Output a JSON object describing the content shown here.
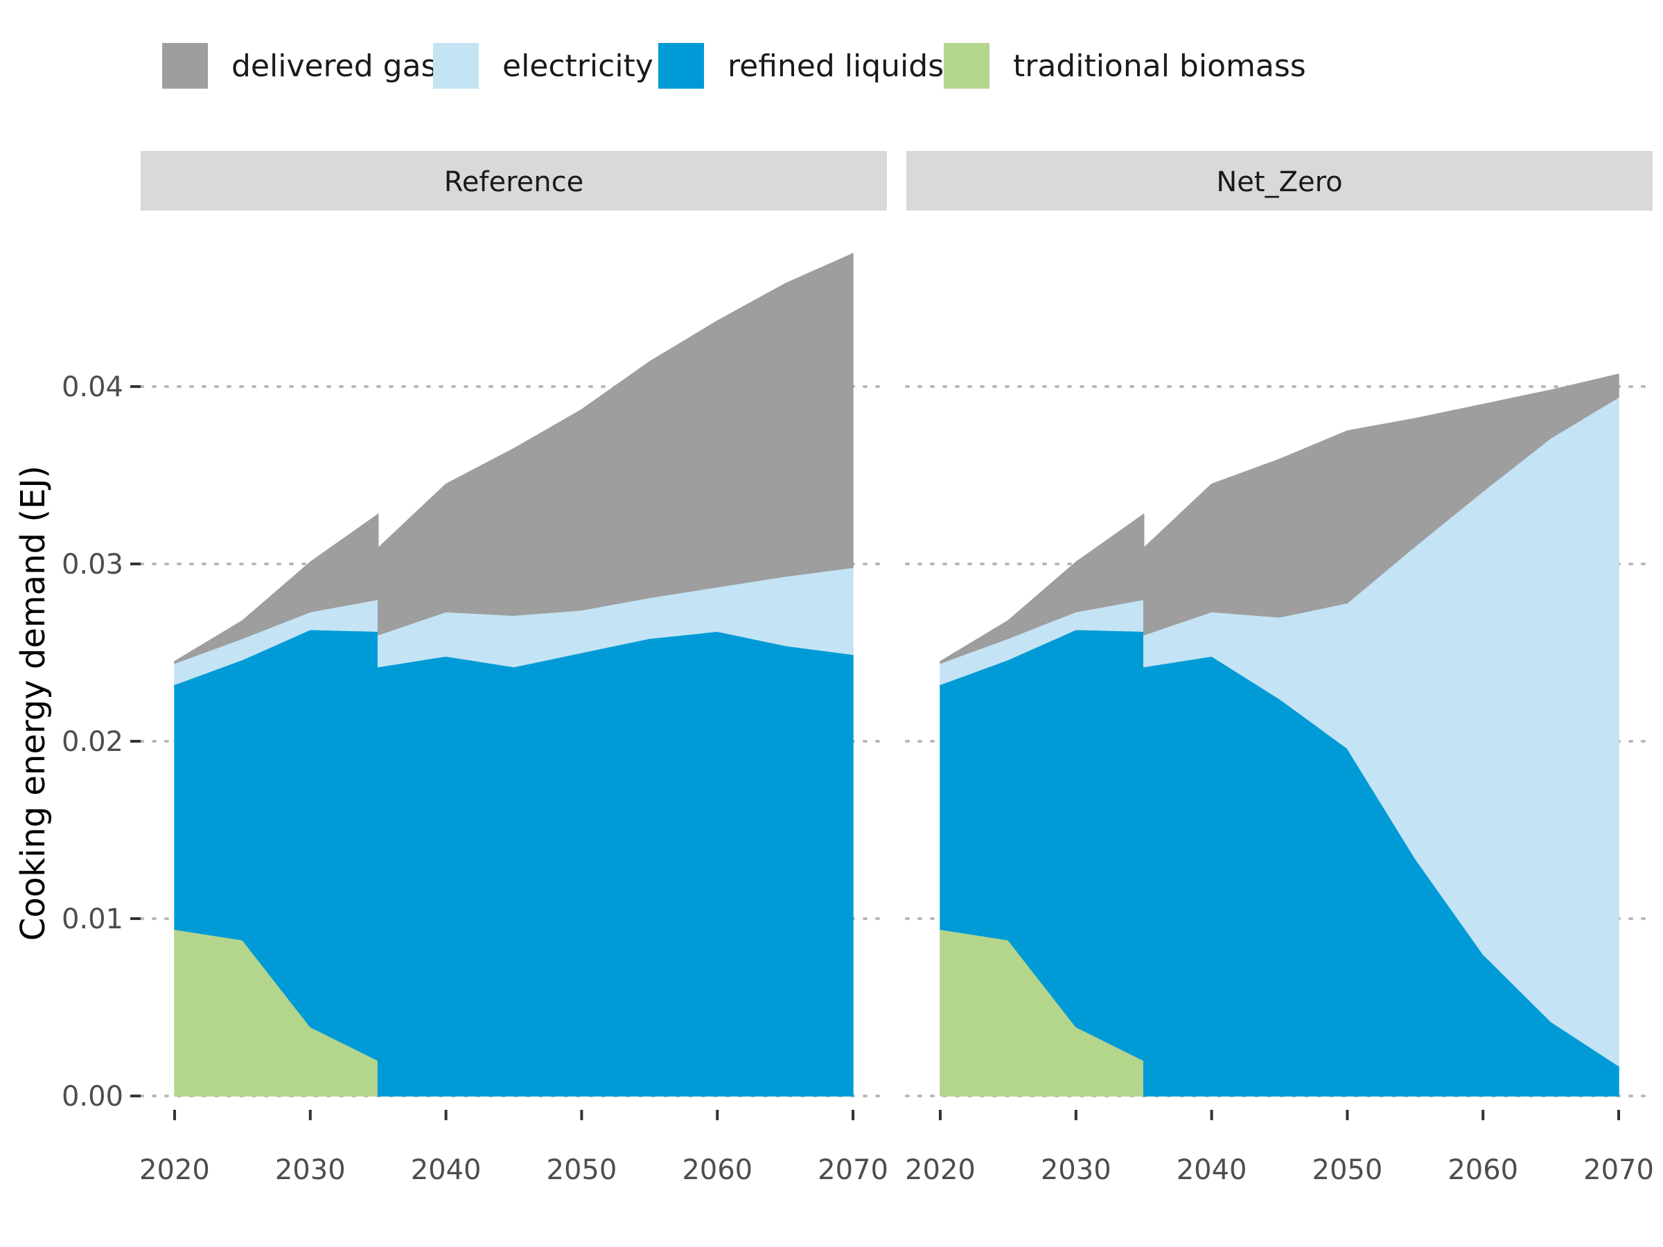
{
  "chart_data": {
    "type": "area",
    "stacked": true,
    "ylabel": "Cooking energy demand (EJ)",
    "xlabel": "",
    "ylim": [
      0,
      0.0475
    ],
    "xlim": [
      2017.5,
      2072.5
    ],
    "x_ticks": [
      "2020",
      "2030",
      "2040",
      "2050",
      "2060",
      "2070"
    ],
    "y_ticks": [
      "0.00",
      "0.01",
      "0.02",
      "0.03",
      "0.04"
    ],
    "grid": "horizontal dotted major lines",
    "legend_position": "top",
    "legend": [
      {
        "key": "delivered_gas",
        "label": "delivered gas",
        "color": "#9e9e9e"
      },
      {
        "key": "electricity",
        "label": "electricity",
        "color": "#c4e3f4"
      },
      {
        "key": "refined_liquids",
        "label": "refined liquids",
        "color": "#009bd6"
      },
      {
        "key": "traditional_biomass",
        "label": "traditional biomass",
        "color": "#b4d58c"
      }
    ],
    "stack_order_bottom_to_top": [
      "traditional_biomass",
      "refined_liquids",
      "electricity",
      "delivered_gas"
    ],
    "panels": [
      {
        "label": "Reference",
        "segments": [
          {
            "x": [
              2020,
              2025,
              2030,
              2035
            ],
            "series": {
              "traditional_biomass": [
                0.0094,
                0.0088,
                0.0039,
                0.002
              ],
              "refined_liquids": [
                0.0138,
                0.0158,
                0.0224,
                0.0242
              ],
              "electricity": [
                0.0012,
                0.0012,
                0.001,
                0.0018
              ],
              "delivered_gas": [
                0.0001,
                0.001,
                0.0028,
                0.0048
              ]
            }
          },
          {
            "x": [
              2035,
              2040,
              2045,
              2050,
              2055,
              2060,
              2065,
              2070
            ],
            "series": {
              "traditional_biomass": [
                0,
                0,
                0,
                0,
                0,
                0,
                0,
                0
              ],
              "refined_liquids": [
                0.0242,
                0.0248,
                0.0242,
                0.025,
                0.0258,
                0.0262,
                0.0254,
                0.0249
              ],
              "electricity": [
                0.0018,
                0.0025,
                0.0029,
                0.0024,
                0.0023,
                0.0025,
                0.0039,
                0.0049
              ],
              "delivered_gas": [
                0.0049,
                0.0072,
                0.0094,
                0.0113,
                0.0133,
                0.015,
                0.0165,
                0.0177
              ]
            }
          }
        ]
      },
      {
        "label": "Net_Zero",
        "segments": [
          {
            "x": [
              2020,
              2025,
              2030,
              2035
            ],
            "series": {
              "traditional_biomass": [
                0.0094,
                0.0088,
                0.0039,
                0.002
              ],
              "refined_liquids": [
                0.0138,
                0.0158,
                0.0224,
                0.0242
              ],
              "electricity": [
                0.0012,
                0.0012,
                0.001,
                0.0018
              ],
              "delivered_gas": [
                0.0001,
                0.001,
                0.0028,
                0.0048
              ]
            }
          },
          {
            "x": [
              2035,
              2040,
              2045,
              2050,
              2055,
              2060,
              2065,
              2070
            ],
            "series": {
              "traditional_biomass": [
                0,
                0,
                0,
                0,
                0,
                0,
                0,
                0
              ],
              "refined_liquids": [
                0.0242,
                0.0248,
                0.0224,
                0.0196,
                0.0134,
                0.008,
                0.0042,
                0.0017
              ],
              "electricity": [
                0.0018,
                0.0025,
                0.0046,
                0.0082,
                0.0176,
                0.0261,
                0.0329,
                0.0377
              ],
              "delivered_gas": [
                0.0049,
                0.0072,
                0.0089,
                0.0097,
                0.0072,
                0.0049,
                0.0027,
                0.0013
              ]
            }
          }
        ]
      }
    ]
  }
}
